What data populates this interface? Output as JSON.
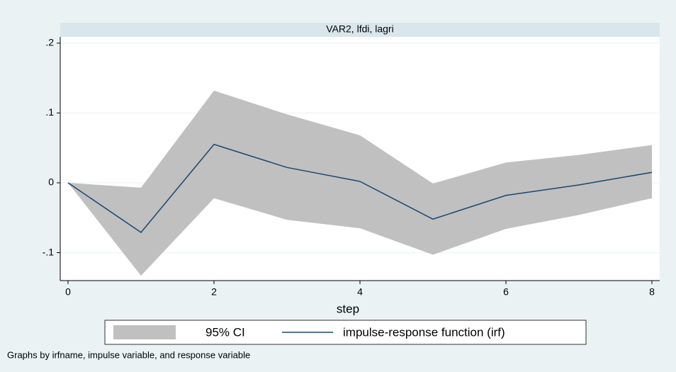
{
  "chart_data": {
    "type": "irf",
    "panel_title": "VAR2, lfdi, lagri",
    "x_label": "step",
    "note": "Graphs by irfname, impulse variable, and response variable",
    "x": [
      0,
      1,
      2,
      3,
      4,
      5,
      6,
      7,
      8
    ],
    "series": [
      {
        "name": "95% CI",
        "color": "#c0c0c0",
        "lower": [
          0,
          -0.133,
          -0.022,
          -0.053,
          -0.065,
          -0.103,
          -0.066,
          -0.046,
          -0.022
        ],
        "upper": [
          0,
          -0.007,
          0.132,
          0.098,
          0.068,
          -0.001,
          0.029,
          0.04,
          0.054
        ]
      },
      {
        "name": "impulse-response function (irf)",
        "color": "#1a476f",
        "values": [
          0,
          -0.071,
          0.055,
          0.022,
          0.002,
          -0.052,
          -0.018,
          -0.003,
          0.015
        ]
      }
    ],
    "xlim": [
      -0.107,
      8.107
    ],
    "ylim": [
      -0.14,
      0.209
    ],
    "xticks": [
      0,
      2,
      4,
      6,
      8
    ],
    "yticks": [
      {
        "value": -0.1,
        "label": "-.1"
      },
      0,
      {
        "value": 0.1,
        "label": ".1"
      },
      {
        "value": 0.2,
        "label": ".2"
      }
    ],
    "grid": true
  }
}
